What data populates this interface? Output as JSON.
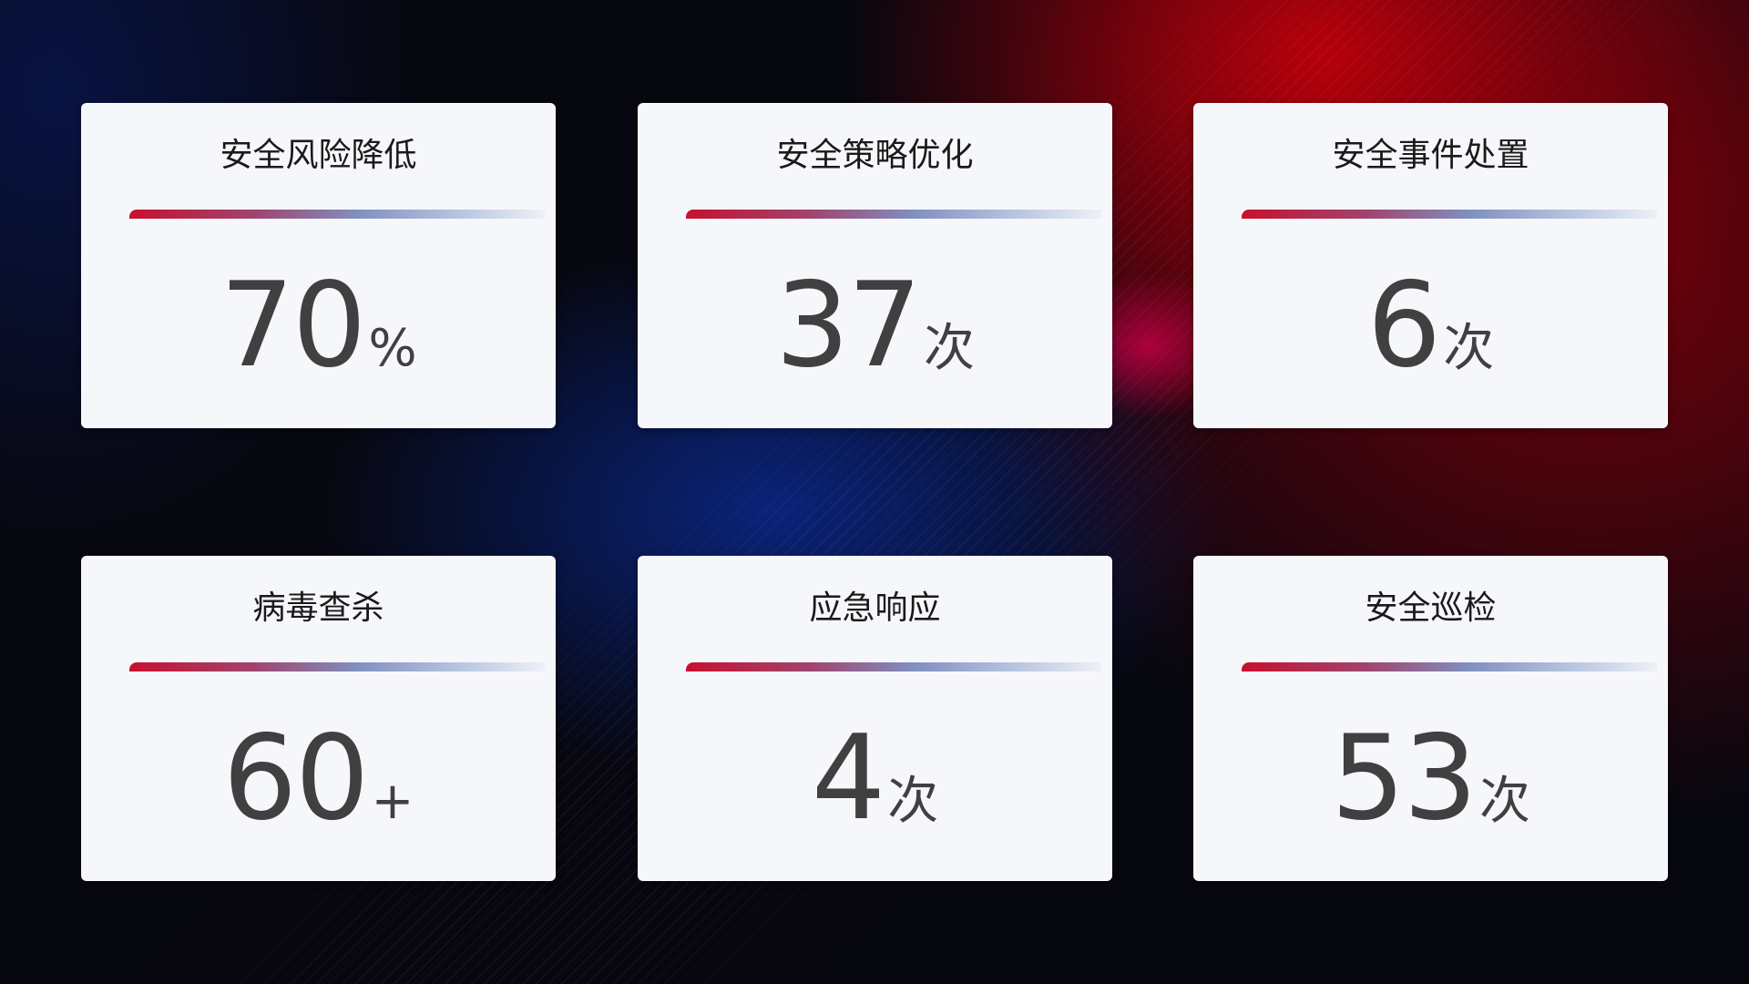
{
  "cards": [
    {
      "title": "安全风险降低",
      "value": "70",
      "unit": "%"
    },
    {
      "title": "安全策略优化",
      "value": "37",
      "unit": "次"
    },
    {
      "title": "安全事件处置",
      "value": "6",
      "unit": "次"
    },
    {
      "title": "病毒查杀",
      "value": "60",
      "unit": "+"
    },
    {
      "title": "应急响应",
      "value": "4",
      "unit": "次"
    },
    {
      "title": "安全巡检",
      "value": "53",
      "unit": "次"
    }
  ],
  "colors": {
    "accent_red": "#c8102e",
    "accent_blue": "#8090c0",
    "card_bg": "#f6f7fb",
    "value_text": "#404040"
  }
}
